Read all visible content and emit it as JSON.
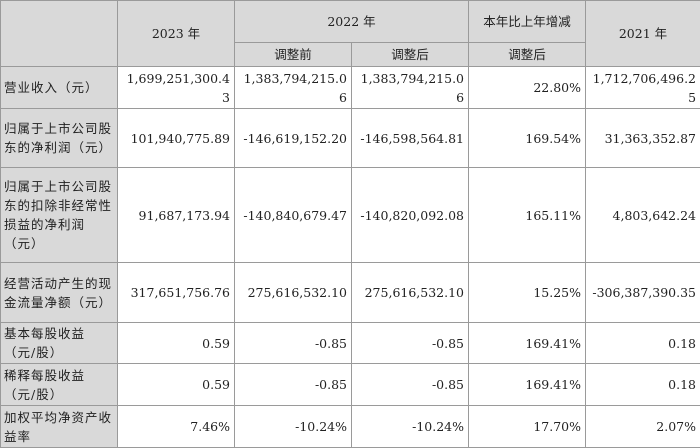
{
  "header": {
    "y2023": "2023 年",
    "y2022": "2022 年",
    "change": "本年比上年增减",
    "y2021": "2021 年",
    "before_adj": "调整前",
    "after_adj": "调整后",
    "change_after_adj": "调整后"
  },
  "rows": [
    {
      "label": "营业收入（元）",
      "v2023": "1,699,251,300.43",
      "v2022_before": "1,383,794,215.06",
      "v2022_after": "1,383,794,215.06",
      "change": "22.80%",
      "v2021": "1,712,706,496.25"
    },
    {
      "label": "归属于上市公司股东的净利润（元）",
      "v2023": "101,940,775.89",
      "v2022_before": "-146,619,152.20",
      "v2022_after": "-146,598,564.81",
      "change": "169.54%",
      "v2021": "31,363,352.87"
    },
    {
      "label": "归属于上市公司股东的扣除非经常性损益的净利润（元）",
      "v2023": "91,687,173.94",
      "v2022_before": "-140,840,679.47",
      "v2022_after": "-140,820,092.08",
      "change": "165.11%",
      "v2021": "4,803,642.24"
    },
    {
      "label": "经营活动产生的现金流量净额（元）",
      "v2023": "317,651,756.76",
      "v2022_before": "275,616,532.10",
      "v2022_after": "275,616,532.10",
      "change": "15.25%",
      "v2021": "-306,387,390.35"
    },
    {
      "label": "基本每股收益（元/股）",
      "v2023": "0.59",
      "v2022_before": "-0.85",
      "v2022_after": "-0.85",
      "change": "169.41%",
      "v2021": "0.18"
    },
    {
      "label": "稀释每股收益（元/股）",
      "v2023": "0.59",
      "v2022_before": "-0.85",
      "v2022_after": "-0.85",
      "change": "169.41%",
      "v2021": "0.18"
    },
    {
      "label": "加权平均净资产收益率",
      "v2023": "7.46%",
      "v2022_before": "-10.24%",
      "v2022_after": "-10.24%",
      "change": "17.70%",
      "v2021": "2.07%"
    }
  ]
}
